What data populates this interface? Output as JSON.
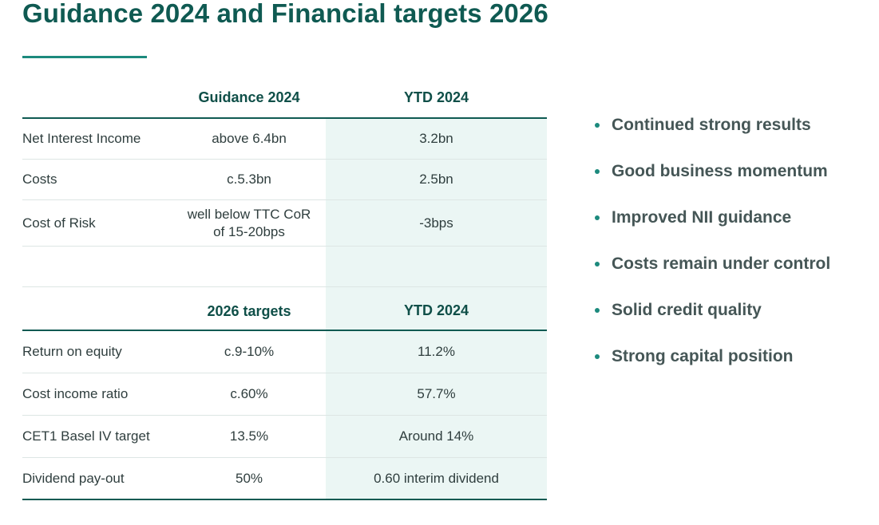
{
  "page": {
    "title": "Guidance 2024 and Financial targets 2026"
  },
  "colors": {
    "accent": "#0f5a52",
    "highlight": "#ebf6f4",
    "bullet": "#1c8a7d"
  },
  "guidance": {
    "headers": [
      "",
      "Guidance 2024",
      "YTD 2024"
    ],
    "rows": [
      {
        "label": "Net Interest Income",
        "guidance": "above 6.4bn",
        "ytd": "3.2bn"
      },
      {
        "label": "Costs",
        "guidance": "c.5.3bn",
        "ytd": "2.5bn"
      },
      {
        "label": "Cost of Risk",
        "guidance_line1": "well below TTC CoR",
        "guidance_line2": "of 15-20bps",
        "ytd": "-3bps"
      }
    ]
  },
  "targets": {
    "headers": [
      "",
      "2026 targets",
      "YTD 2024"
    ],
    "rows": [
      {
        "label": "Return on equity",
        "target": "c.9-10%",
        "ytd": "11.2%"
      },
      {
        "label": "Cost income ratio",
        "target": "c.60%",
        "ytd": "57.7%"
      },
      {
        "label": "CET1 Basel IV target",
        "target": "13.5%",
        "ytd": "Around 14%"
      },
      {
        "label": "Dividend pay-out",
        "target": "50%",
        "ytd": "0.60 interim dividend"
      }
    ]
  },
  "highlights": [
    "Continued strong results",
    "Good business momentum",
    "Improved NII guidance",
    "Costs remain under control",
    "Solid credit quality",
    "Strong capital position"
  ]
}
